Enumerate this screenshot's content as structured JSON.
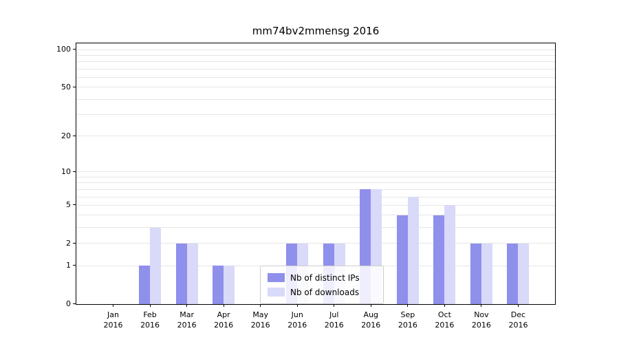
{
  "chart_data": {
    "type": "bar",
    "title": "mm74bv2mmensg 2016",
    "categories": [
      "Jan",
      "Feb",
      "Mar",
      "Apr",
      "May",
      "Jun",
      "Jul",
      "Aug",
      "Sep",
      "Oct",
      "Nov",
      "Dec"
    ],
    "year_label": "2016",
    "series": [
      {
        "name": "Nb of distinct IPs",
        "color": "#8f8fec",
        "values": [
          0,
          1,
          2,
          1,
          0,
          2,
          2,
          7,
          4,
          4,
          2,
          2
        ]
      },
      {
        "name": "Nb of downloads",
        "color": "#d9d9f9",
        "values": [
          0,
          3,
          2,
          1,
          0,
          2,
          2,
          7,
          6,
          5,
          2,
          2
        ]
      }
    ],
    "yticks": [
      0,
      1,
      2,
      5,
      10,
      20,
      50,
      100
    ],
    "minor_gridlines": [
      1,
      2,
      3,
      4,
      5,
      6,
      7,
      8,
      9,
      10,
      20,
      30,
      40,
      50,
      60,
      70,
      80,
      90,
      100
    ],
    "ylim": [
      0,
      100
    ],
    "scale": "log1p",
    "grid": "horizontal",
    "legend_position": "lower-center"
  }
}
